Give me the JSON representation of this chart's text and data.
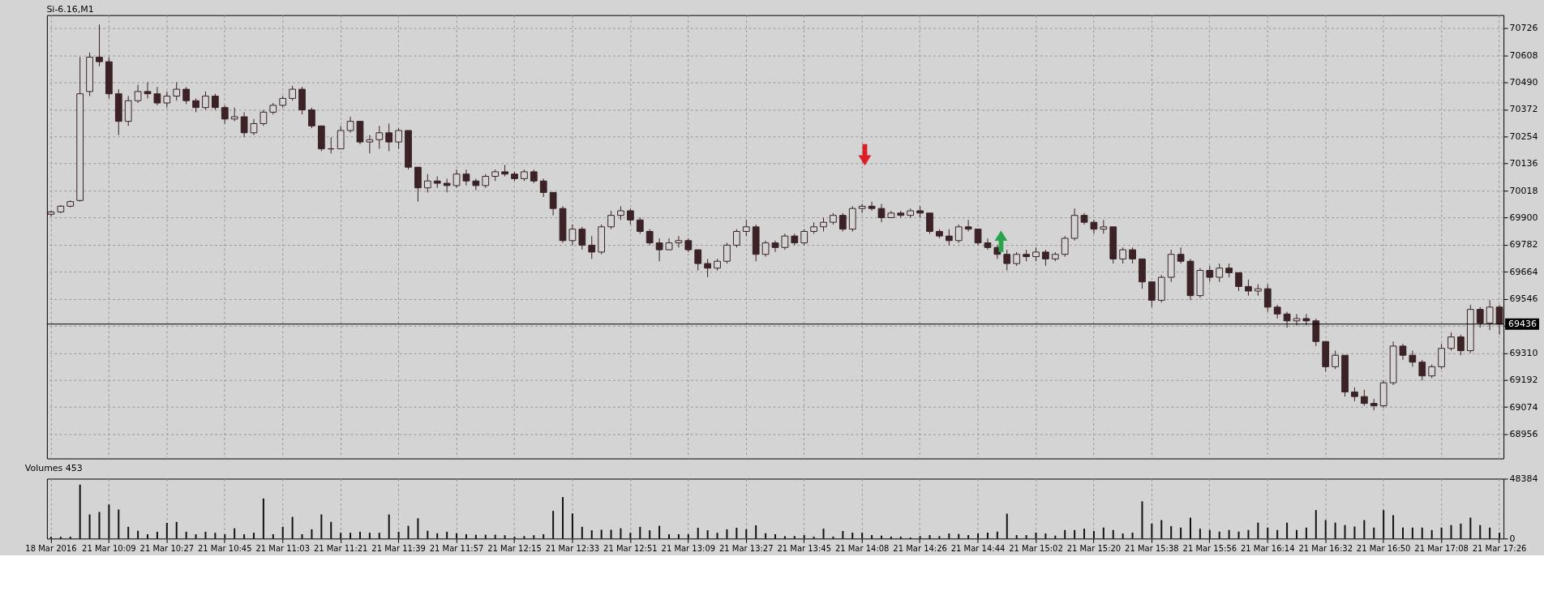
{
  "chart_data": [
    {
      "type": "candlestick",
      "title": "Si-6.16,M1",
      "color": "#3a2226",
      "ohlc": [
        [
          69915,
          69930,
          69905,
          69925
        ],
        [
          69925,
          69955,
          69920,
          69950
        ],
        [
          69950,
          69975,
          69945,
          69970
        ],
        [
          69975,
          70600,
          69970,
          70440
        ],
        [
          70450,
          70620,
          70430,
          70600
        ],
        [
          70600,
          70742,
          70560,
          70580
        ],
        [
          70580,
          70600,
          70420,
          70440
        ],
        [
          70440,
          70460,
          70260,
          70320
        ],
        [
          70320,
          70430,
          70300,
          70410
        ],
        [
          70410,
          70480,
          70400,
          70450
        ],
        [
          70450,
          70490,
          70420,
          70440
        ],
        [
          70440,
          70470,
          70390,
          70400
        ],
        [
          70400,
          70450,
          70380,
          70430
        ],
        [
          70430,
          70490,
          70410,
          70460
        ],
        [
          70460,
          70470,
          70395,
          70410
        ],
        [
          70410,
          70420,
          70360,
          70380
        ],
        [
          70380,
          70450,
          70370,
          70430
        ],
        [
          70430,
          70440,
          70370,
          70380
        ],
        [
          70380,
          70390,
          70310,
          70330
        ],
        [
          70330,
          70380,
          70320,
          70340
        ],
        [
          70340,
          70360,
          70250,
          70270
        ],
        [
          70270,
          70330,
          70260,
          70310
        ],
        [
          70310,
          70370,
          70300,
          70360
        ],
        [
          70360,
          70400,
          70350,
          70390
        ],
        [
          70390,
          70430,
          70380,
          70420
        ],
        [
          70420,
          70475,
          70410,
          70460
        ],
        [
          70460,
          70470,
          70350,
          70370
        ],
        [
          70370,
          70380,
          70290,
          70300
        ],
        [
          70300,
          70300,
          70190,
          70200
        ],
        [
          70200,
          70250,
          70180,
          70200
        ],
        [
          70200,
          70300,
          70200,
          70280
        ],
        [
          70280,
          70340,
          70270,
          70320
        ],
        [
          70320,
          70320,
          70220,
          70230
        ],
        [
          70230,
          70260,
          70180,
          70240
        ],
        [
          70240,
          70300,
          70200,
          70270
        ],
        [
          70270,
          70310,
          70190,
          70230
        ],
        [
          70230,
          70290,
          70200,
          70280
        ],
        [
          70280,
          70280,
          70110,
          70120
        ],
        [
          70120,
          70120,
          69970,
          70030
        ],
        [
          70030,
          70090,
          70010,
          70060
        ],
        [
          70060,
          70080,
          70030,
          70050
        ],
        [
          70050,
          70070,
          70010,
          70040
        ],
        [
          70040,
          70110,
          70030,
          70090
        ],
        [
          70090,
          70110,
          70040,
          70060
        ],
        [
          70060,
          70070,
          70020,
          70040
        ],
        [
          70040,
          70090,
          70030,
          70080
        ],
        [
          70080,
          70110,
          70060,
          70100
        ],
        [
          70100,
          70130,
          70080,
          70090
        ],
        [
          70090,
          70100,
          70060,
          70070
        ],
        [
          70070,
          70110,
          70060,
          70100
        ],
        [
          70100,
          70110,
          70050,
          70060
        ],
        [
          70060,
          70070,
          69990,
          70010
        ],
        [
          70010,
          70010,
          69910,
          69940
        ],
        [
          69940,
          69950,
          69790,
          69800
        ],
        [
          69800,
          69870,
          69780,
          69850
        ],
        [
          69850,
          69860,
          69760,
          69780
        ],
        [
          69780,
          69820,
          69720,
          69750
        ],
        [
          69750,
          69870,
          69740,
          69860
        ],
        [
          69860,
          69930,
          69850,
          69910
        ],
        [
          69910,
          69950,
          69890,
          69930
        ],
        [
          69930,
          69940,
          69870,
          69890
        ],
        [
          69890,
          69900,
          69830,
          69840
        ],
        [
          69840,
          69850,
          69780,
          69790
        ],
        [
          69790,
          69810,
          69710,
          69760
        ],
        [
          69760,
          69810,
          69760,
          69790
        ],
        [
          69790,
          69820,
          69770,
          69800
        ],
        [
          69800,
          69810,
          69750,
          69760
        ],
        [
          69760,
          69760,
          69670,
          69700
        ],
        [
          69700,
          69720,
          69640,
          69680
        ],
        [
          69680,
          69720,
          69670,
          69710
        ],
        [
          69710,
          69790,
          69700,
          69780
        ],
        [
          69780,
          69850,
          69770,
          69840
        ],
        [
          69840,
          69890,
          69820,
          69860
        ],
        [
          69860,
          69870,
          69710,
          69740
        ],
        [
          69740,
          69800,
          69730,
          69790
        ],
        [
          69790,
          69800,
          69750,
          69770
        ],
        [
          69770,
          69830,
          69760,
          69820
        ],
        [
          69820,
          69830,
          69780,
          69790
        ],
        [
          69790,
          69850,
          69780,
          69840
        ],
        [
          69840,
          69880,
          69830,
          69860
        ],
        [
          69860,
          69900,
          69840,
          69880
        ],
        [
          69880,
          69920,
          69870,
          69910
        ],
        [
          69910,
          69920,
          69840,
          69850
        ],
        [
          69850,
          69950,
          69840,
          69940
        ],
        [
          69940,
          69960,
          69920,
          69950
        ],
        [
          69950,
          69970,
          69930,
          69940
        ],
        [
          69940,
          69960,
          69880,
          69900
        ],
        [
          69900,
          69930,
          69900,
          69920
        ],
        [
          69920,
          69930,
          69900,
          69910
        ],
        [
          69910,
          69940,
          69900,
          69930
        ],
        [
          69930,
          69950,
          69900,
          69920
        ],
        [
          69920,
          69920,
          69830,
          69840
        ],
        [
          69840,
          69850,
          69810,
          69820
        ],
        [
          69820,
          69850,
          69780,
          69800
        ],
        [
          69800,
          69870,
          69790,
          69860
        ],
        [
          69860,
          69890,
          69840,
          69850
        ],
        [
          69850,
          69850,
          69780,
          69790
        ],
        [
          69790,
          69810,
          69760,
          69770
        ],
        [
          69770,
          69780,
          69720,
          69740
        ],
        [
          69740,
          69760,
          69670,
          69700
        ],
        [
          69700,
          69750,
          69690,
          69740
        ],
        [
          69740,
          69760,
          69710,
          69730
        ],
        [
          69730,
          69770,
          69710,
          69750
        ],
        [
          69750,
          69760,
          69690,
          69720
        ],
        [
          69720,
          69750,
          69710,
          69740
        ],
        [
          69740,
          69820,
          69730,
          69810
        ],
        [
          69810,
          69940,
          69800,
          69910
        ],
        [
          69910,
          69920,
          69870,
          69880
        ],
        [
          69880,
          69890,
          69830,
          69850
        ],
        [
          69850,
          69890,
          69830,
          69860
        ],
        [
          69860,
          69860,
          69700,
          69720
        ],
        [
          69720,
          69770,
          69700,
          69760
        ],
        [
          69760,
          69770,
          69700,
          69720
        ],
        [
          69720,
          69720,
          69590,
          69620
        ],
        [
          69620,
          69620,
          69510,
          69540
        ],
        [
          69540,
          69650,
          69530,
          69640
        ],
        [
          69640,
          69760,
          69620,
          69740
        ],
        [
          69740,
          69770,
          69700,
          69710
        ],
        [
          69710,
          69720,
          69540,
          69560
        ],
        [
          69560,
          69680,
          69550,
          69670
        ],
        [
          69670,
          69690,
          69620,
          69640
        ],
        [
          69640,
          69700,
          69620,
          69680
        ],
        [
          69680,
          69700,
          69640,
          69660
        ],
        [
          69660,
          69660,
          69580,
          69600
        ],
        [
          69600,
          69630,
          69560,
          69580
        ],
        [
          69580,
          69610,
          69560,
          69590
        ],
        [
          69590,
          69610,
          69490,
          69510
        ],
        [
          69510,
          69520,
          69460,
          69480
        ],
        [
          69480,
          69490,
          69420,
          69450
        ],
        [
          69450,
          69480,
          69430,
          69460
        ],
        [
          69460,
          69480,
          69430,
          69450
        ],
        [
          69450,
          69460,
          69340,
          69360
        ],
        [
          69360,
          69360,
          69230,
          69250
        ],
        [
          69250,
          69320,
          69240,
          69300
        ],
        [
          69300,
          69300,
          69120,
          69140
        ],
        [
          69140,
          69160,
          69100,
          69120
        ],
        [
          69120,
          69150,
          69080,
          69090
        ],
        [
          69090,
          69110,
          69060,
          69080
        ],
        [
          69080,
          69190,
          69070,
          69180
        ],
        [
          69180,
          69360,
          69170,
          69340
        ],
        [
          69340,
          69350,
          69280,
          69300
        ],
        [
          69300,
          69320,
          69250,
          69270
        ],
        [
          69270,
          69280,
          69190,
          69210
        ],
        [
          69210,
          69260,
          69200,
          69250
        ],
        [
          69250,
          69350,
          69240,
          69330
        ],
        [
          69330,
          69400,
          69320,
          69380
        ],
        [
          69380,
          69390,
          69300,
          69320
        ],
        [
          69320,
          69520,
          69310,
          69500
        ],
        [
          69500,
          69510,
          69420,
          69440
        ],
        [
          69440,
          69540,
          69410,
          69510
        ],
        [
          69510,
          69520,
          69390,
          69436
        ]
      ],
      "ylim": [
        68850,
        70783
      ],
      "yticks": [
        68956,
        69074,
        69192,
        69310,
        {
          "value": 69428,
          "label": null
        },
        69546,
        69664,
        69782,
        69900,
        70018,
        70136,
        70254,
        70372,
        70490,
        70608,
        70726
      ],
      "grid": true,
      "tick_labels": "y",
      "ref_lines": [
        {
          "axis": "y",
          "value": 69436,
          "label": "69436",
          "color": "#000000"
        }
      ]
    },
    {
      "type": "bar",
      "title": "Volumes 453",
      "color": "#111111",
      "categories": [
        "18 Mar 2016",
        null,
        null,
        null,
        null,
        null,
        "21 Mar 10:09",
        null,
        null,
        null,
        null,
        null,
        "21 Mar 10:27",
        null,
        null,
        null,
        null,
        null,
        "21 Mar 10:45",
        null,
        null,
        null,
        null,
        null,
        "21 Mar 11:03",
        null,
        null,
        null,
        null,
        null,
        "21 Mar 11:21",
        null,
        null,
        null,
        null,
        null,
        "21 Mar 11:39",
        null,
        null,
        null,
        null,
        null,
        "21 Mar 11:57",
        null,
        null,
        null,
        null,
        null,
        "21 Mar 12:15",
        null,
        null,
        null,
        null,
        null,
        "21 Mar 12:33",
        null,
        null,
        null,
        null,
        null,
        "21 Mar 12:51",
        null,
        null,
        null,
        null,
        null,
        "21 Mar 13:09",
        null,
        null,
        null,
        null,
        null,
        "21 Mar 13:27",
        null,
        null,
        null,
        null,
        null,
        "21 Mar 13:45",
        null,
        null,
        null,
        null,
        null,
        "21 Mar 14:08",
        null,
        null,
        null,
        null,
        null,
        "21 Mar 14:26",
        null,
        null,
        null,
        null,
        null,
        "21 Mar 14:44",
        null,
        null,
        null,
        null,
        null,
        "21 Mar 15:02",
        null,
        null,
        null,
        null,
        null,
        "21 Mar 15:20",
        null,
        null,
        null,
        null,
        null,
        "21 Mar 15:38",
        null,
        null,
        null,
        null,
        null,
        "21 Mar 15:56",
        null,
        null,
        null,
        null,
        null,
        "21 Mar 16:14",
        null,
        null,
        null,
        null,
        null,
        "21 Mar 16:32",
        null,
        null,
        null,
        null,
        null,
        "21 Mar 16:50",
        null,
        null,
        null,
        null,
        null,
        "21 Mar 17:08",
        null,
        null,
        null,
        null,
        null,
        "21 Mar 17:26"
      ],
      "values": [
        1500,
        1500,
        1500,
        43600,
        19500,
        21500,
        27500,
        23500,
        9500,
        6300,
        3500,
        5500,
        12700,
        13500,
        5500,
        3500,
        5500,
        4700,
        3500,
        8300,
        3500,
        4700,
        32400,
        3500,
        9500,
        17500,
        3500,
        7500,
        19500,
        13500,
        4700,
        4700,
        5500,
        4700,
        4700,
        19500,
        5500,
        10300,
        16400,
        6300,
        4300,
        5500,
        4300,
        3500,
        3100,
        3100,
        3100,
        2700,
        1500,
        2000,
        2700,
        3500,
        22400,
        33500,
        20300,
        9500,
        6700,
        7100,
        7100,
        8300,
        4700,
        9500,
        6700,
        10300,
        3500,
        3500,
        3500,
        8700,
        6700,
        4700,
        7500,
        8700,
        7500,
        10700,
        4300,
        3500,
        2000,
        2000,
        2800,
        1600,
        8000,
        1600,
        6100,
        4800,
        4800,
        2800,
        2400,
        1600,
        1600,
        900,
        2000,
        2800,
        2000,
        4100,
        3700,
        2800,
        4100,
        4800,
        5600,
        20100,
        2800,
        2800,
        4800,
        4100,
        2400,
        6900,
        6900,
        8000,
        6100,
        8900,
        6900,
        4100,
        4800,
        30100,
        12100,
        14900,
        10100,
        8900,
        16900,
        8000,
        6900,
        5600,
        6900,
        5600,
        6900,
        12900,
        8900,
        6900,
        12900,
        6900,
        8900,
        23000,
        14900,
        12900,
        10900,
        9700,
        14900,
        8900,
        23000,
        18900,
        8900,
        8900,
        8900,
        6900,
        8900,
        10900,
        12100,
        16900,
        10900,
        8900,
        4800
      ],
      "ylim": [
        0,
        48384
      ],
      "yticks": [
        0,
        48384
      ],
      "grid": "x"
    }
  ]
}
